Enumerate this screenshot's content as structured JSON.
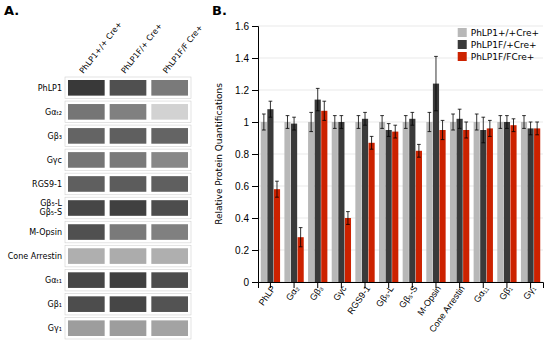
{
  "chart_data": [
    {
      "type": "heatmap",
      "title": "A.",
      "x": [
        "PhLP1+/+ Cre+",
        "PhLP1F/+ Cre+",
        "PhLP1F/F Cre+"
      ],
      "y": [
        "PhLP1",
        "Gαₜ₂",
        "Gβ₃",
        "Gγc",
        "RGS9-1",
        "Gβ₅-L\nGβ₅-S",
        "M-Opsin",
        "Cone Arrestin",
        "Gαₜ₁",
        "Gβ₁",
        "Gγ₁"
      ],
      "values": [
        [
          0.82,
          0.75,
          0.6
        ],
        [
          0.62,
          0.58,
          0.28
        ],
        [
          0.68,
          0.7,
          0.68
        ],
        [
          0.62,
          0.6,
          0.55
        ],
        [
          0.7,
          0.71,
          0.7
        ],
        [
          0.78,
          0.8,
          0.76
        ],
        [
          0.75,
          0.6,
          0.58
        ],
        [
          0.42,
          0.43,
          0.42
        ],
        [
          0.78,
          0.8,
          0.76
        ],
        [
          0.76,
          0.78,
          0.74
        ],
        [
          0.48,
          0.48,
          0.46
        ]
      ]
    },
    {
      "type": "bar",
      "title": "B.",
      "ylabel": "Relative Protein Quantifications",
      "categories": [
        "PhLP",
        "Gα₂",
        "Gβ₃",
        "Gγc",
        "RGS9-1",
        "Gβ₅-L",
        "Gβ₅-S",
        "M-Opsin",
        "Cone Arrestin",
        "Gα₁₁",
        "Gβ₁",
        "Gγ₁"
      ],
      "series": [
        {
          "name": "PhLP1+/+Cre+",
          "color": "#b8b8b8",
          "values": [
            1.0,
            1.0,
            1.0,
            1.0,
            1.0,
            1.0,
            1.0,
            1.0,
            1.0,
            1.0,
            1.0,
            1.0
          ],
          "errors": [
            0.05,
            0.04,
            0.06,
            0.04,
            0.04,
            0.04,
            0.04,
            0.06,
            0.05,
            0.05,
            0.04,
            0.04
          ]
        },
        {
          "name": "PhLP1F/+Cre+",
          "color": "#3a3a3a",
          "values": [
            1.08,
            0.99,
            1.14,
            1.0,
            1.02,
            0.95,
            1.02,
            1.24,
            1.02,
            0.95,
            1.0,
            0.96
          ],
          "errors": [
            0.05,
            0.04,
            0.07,
            0.04,
            0.04,
            0.04,
            0.04,
            0.17,
            0.06,
            0.08,
            0.04,
            0.04
          ]
        },
        {
          "name": "PhLP1F/FCre+",
          "color": "#cc2200",
          "values": [
            0.58,
            0.28,
            1.07,
            0.4,
            0.87,
            0.94,
            0.82,
            0.95,
            0.95,
            0.96,
            0.98,
            0.96
          ],
          "errors": [
            0.05,
            0.06,
            0.06,
            0.04,
            0.04,
            0.04,
            0.04,
            0.06,
            0.05,
            0.05,
            0.04,
            0.04
          ]
        }
      ],
      "ylim": [
        0,
        1.6
      ],
      "yticks": [
        0,
        0.2,
        0.4,
        0.6,
        0.8,
        1.0,
        1.2,
        1.4,
        1.6
      ],
      "grid": true,
      "legend": "upper right"
    }
  ]
}
